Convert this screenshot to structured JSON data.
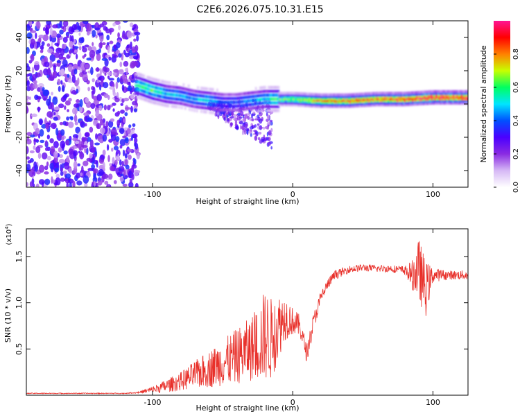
{
  "title": "C2E6.2026.075.10.31.E15",
  "chart_data": [
    {
      "type": "heatmap",
      "title": "C2E6.2026.075.10.31.E15",
      "xlabel": "Height of straight line (km)",
      "ylabel": "Frequency (Hz)",
      "xlim": [
        -190,
        125
      ],
      "ylim": [
        -50,
        50
      ],
      "xticks": [
        -100,
        0,
        100
      ],
      "xtick_labels": [
        "-100",
        "0",
        "100"
      ],
      "yticks": [
        -40,
        -20,
        0,
        20,
        40
      ],
      "ytick_labels": [
        "-40",
        "-20",
        "0",
        "20",
        "40"
      ],
      "colorbar": {
        "label": "Normalized spectral amplitude",
        "range": [
          0.0,
          1.0
        ],
        "ticks": [
          0.0,
          0.2,
          0.4,
          0.6,
          0.8
        ],
        "tick_labels": [
          "0.0",
          "0.2",
          "0.4",
          "0.6",
          "0.8"
        ],
        "colormap": [
          "#ffffff",
          "#d6b8f5",
          "#8a2be2",
          "#4b00ff",
          "#0050ff",
          "#00e5ff",
          "#00ff60",
          "#c8ff00",
          "#ff8000",
          "#ff0000",
          "#ff1493"
        ]
      },
      "ridge": {
        "x": [
          -110,
          -100,
          -90,
          -80,
          -70,
          -60,
          -50,
          -40,
          -30,
          -20,
          -10,
          0,
          20,
          40,
          60,
          80,
          100,
          125
        ],
        "center_hz": [
          11,
          8,
          6,
          5,
          3,
          2,
          1,
          1,
          2,
          3,
          3,
          3,
          2,
          2,
          3,
          3,
          4,
          4
        ],
        "amplitude": [
          0.55,
          0.6,
          0.5,
          0.45,
          0.45,
          0.5,
          0.4,
          0.4,
          0.45,
          0.5,
          0.6,
          0.65,
          0.8,
          0.85,
          0.85,
          0.9,
          0.95,
          0.95
        ]
      }
    },
    {
      "type": "line",
      "xlabel": "Height of straight line (km)",
      "ylabel": "SNR (10 * v/v)",
      "y_multiplier": "(x10",
      "y_multiplier_exp": "4",
      "y_multiplier_close": ")",
      "xlim": [
        -190,
        125
      ],
      "ylim": [
        0,
        1.8
      ],
      "xticks": [
        -100,
        0,
        100
      ],
      "xtick_labels": [
        "-100",
        "0",
        "100"
      ],
      "yticks": [
        0.5,
        1.0,
        1.5
      ],
      "ytick_labels": [
        "0.5",
        "1.0",
        "1.5"
      ],
      "color": "#e8302a",
      "series": [
        {
          "name": "SNR",
          "x": [
            -190,
            -150,
            -120,
            -110,
            -100,
            -90,
            -80,
            -70,
            -60,
            -50,
            -40,
            -30,
            -25,
            -20,
            -15,
            -10,
            -5,
            0,
            5,
            10,
            15,
            20,
            25,
            30,
            40,
            50,
            60,
            70,
            80,
            85,
            90,
            95,
            100,
            110,
            125
          ],
          "y": [
            0.02,
            0.02,
            0.02,
            0.03,
            0.06,
            0.1,
            0.15,
            0.22,
            0.28,
            0.35,
            0.42,
            0.5,
            0.55,
            0.65,
            0.6,
            0.75,
            0.85,
            0.8,
            0.75,
            0.45,
            0.8,
            1.05,
            1.2,
            1.3,
            1.36,
            1.38,
            1.37,
            1.37,
            1.35,
            1.3,
            1.35,
            1.15,
            1.3,
            1.3,
            1.3
          ],
          "spread": [
            0.005,
            0.005,
            0.005,
            0.01,
            0.04,
            0.07,
            0.1,
            0.15,
            0.2,
            0.25,
            0.3,
            0.35,
            0.4,
            0.5,
            0.45,
            0.35,
            0.25,
            0.15,
            0.12,
            0.1,
            0.1,
            0.08,
            0.06,
            0.05,
            0.04,
            0.04,
            0.04,
            0.04,
            0.05,
            0.15,
            0.35,
            0.3,
            0.08,
            0.05,
            0.05
          ]
        }
      ]
    }
  ]
}
